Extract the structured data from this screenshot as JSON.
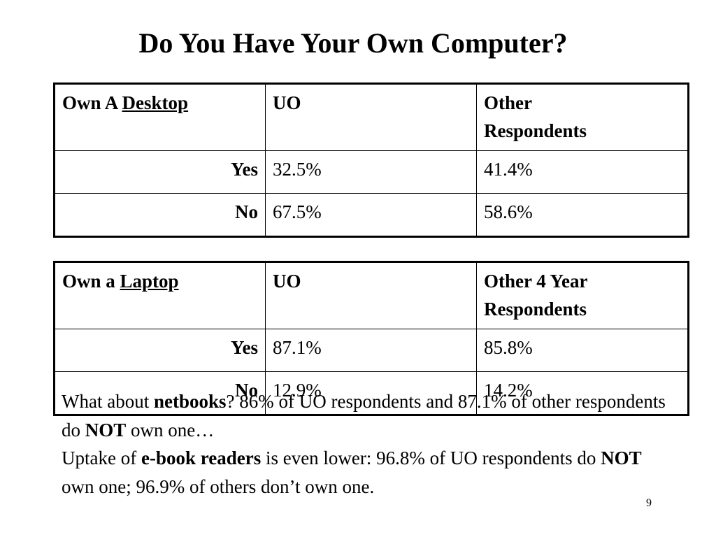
{
  "title": "Do You Have Your Own Computer?",
  "desktop_table": {
    "header": {
      "label_prefix": "Own A ",
      "label_emph": "Desktop",
      "col2": "UO",
      "col3_line1": "Other",
      "col3_line2": "Respondents"
    },
    "rows": [
      {
        "label": "Yes",
        "uo": "32.5%",
        "other": "41.4%"
      },
      {
        "label": "No",
        "uo": "67.5%",
        "other": "58.6%"
      }
    ]
  },
  "laptop_table": {
    "header": {
      "label_prefix": "Own a ",
      "label_emph": "Laptop",
      "col2": "UO",
      "col3_line1": "Other 4 Year",
      "col3_line2": "Respondents"
    },
    "rows": [
      {
        "label": "Yes",
        "uo": "87.1%",
        "other": "85.8%"
      },
      {
        "label": "No",
        "uo": "12.9%",
        "other": "14.2%"
      }
    ]
  },
  "notes": {
    "line1": {
      "before": "What about ",
      "bold": "netbooks",
      "after": "? 86% of UO respondents and 87.1% of other respondents do ",
      "bold2": "NOT",
      "end": " own one…"
    },
    "line2": {
      "before": "Uptake of ",
      "bold": "e-book readers",
      "after": " is even lower: 96.8% of UO respondents do ",
      "bold2": "NOT",
      "end": " own one; 96.9% of others don’t own one."
    }
  },
  "page_number": "9"
}
